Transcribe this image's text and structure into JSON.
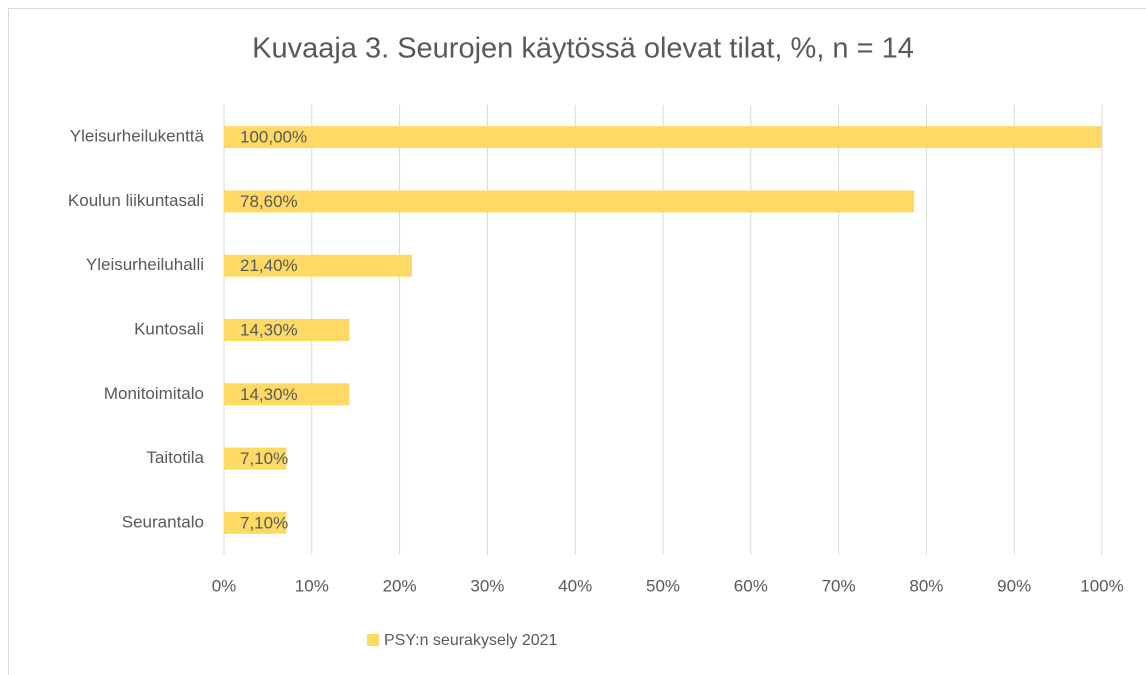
{
  "chart_data": {
    "type": "bar",
    "orientation": "horizontal",
    "title": "Kuvaaja 3. Seurojen käytössä olevat tilat, %, n = 14",
    "categories": [
      "Yleisurheilukenttä",
      "Koulun liikuntasali",
      "Yleisurheiluhalli",
      "Kuntosali",
      "Monitoimitalo",
      "Taitotila",
      "Seurantalo"
    ],
    "series": [
      {
        "name": "PSY:n seurakysely 2021",
        "color": "#ffd966",
        "values": [
          100,
          78.6,
          21.4,
          14.3,
          14.3,
          7.1,
          7.1
        ],
        "value_labels": [
          "100,00%",
          "78,60%",
          "21,40%",
          "14,30%",
          "14,30%",
          "7,10%",
          "7,10%"
        ]
      }
    ],
    "xlim": [
      0,
      100
    ],
    "xticks": [
      {
        "value": 0,
        "label": "0%"
      },
      {
        "value": 10,
        "label": "10%"
      },
      {
        "value": 20,
        "label": "20%"
      },
      {
        "value": 30,
        "label": "30%"
      },
      {
        "value": 40,
        "label": "40%"
      },
      {
        "value": 50,
        "label": "50%"
      },
      {
        "value": 60,
        "label": "60%"
      },
      {
        "value": 70,
        "label": "70%"
      },
      {
        "value": 80,
        "label": "80%"
      },
      {
        "value": 90,
        "label": "90%"
      },
      {
        "value": 100,
        "label": "100%"
      }
    ],
    "grid": true,
    "legend": "bottom"
  }
}
